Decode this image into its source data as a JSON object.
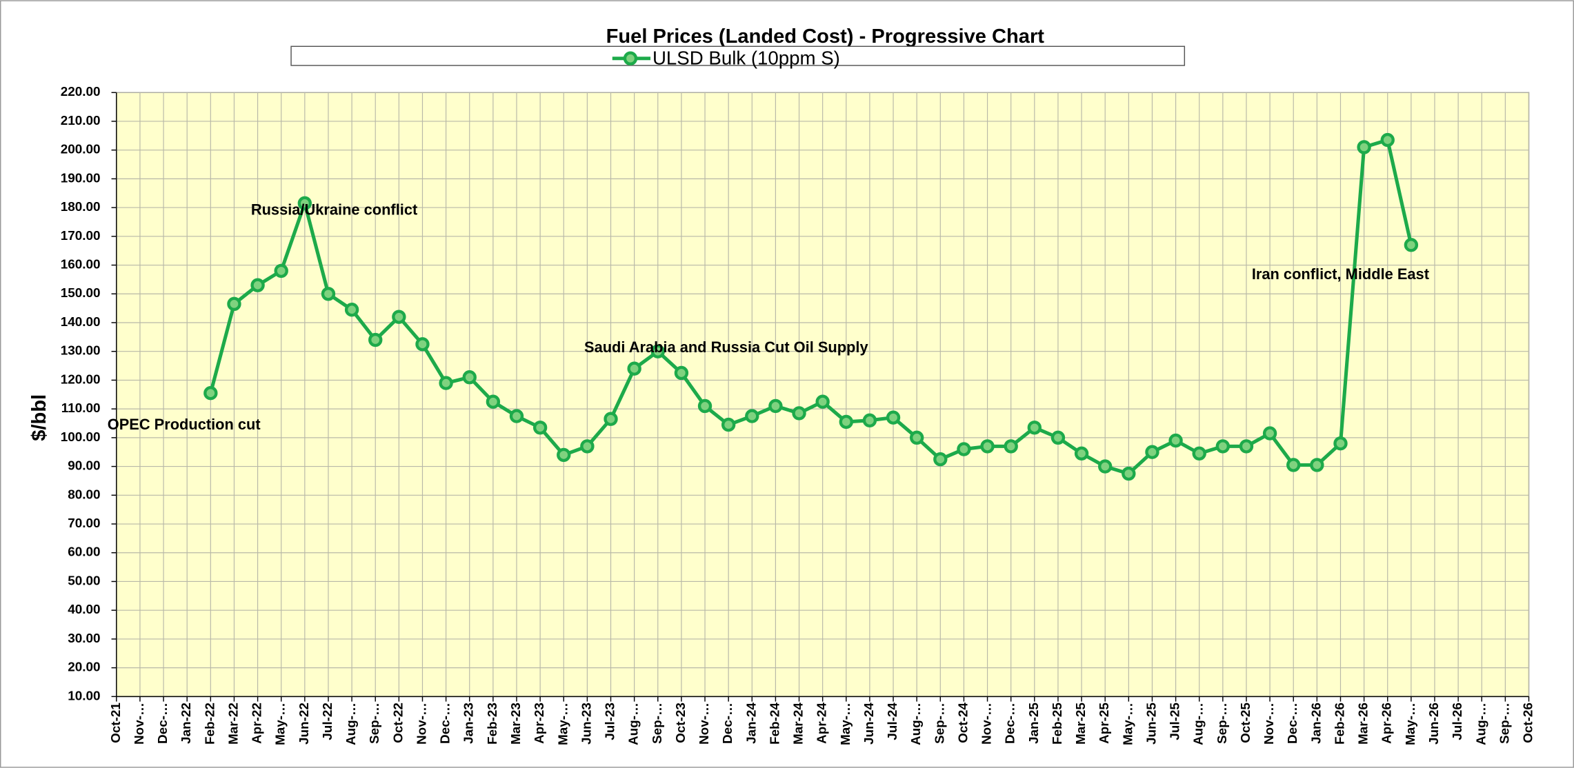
{
  "chart_data": {
    "type": "line",
    "title": "Fuel Prices (Landed Cost) - Progressive Chart",
    "ylabel": "$/bbl",
    "categories": [
      "Oct-21",
      "Nov-…",
      "Dec-…",
      "Jan-22",
      "Feb-22",
      "Mar-22",
      "Apr-22",
      "May-…",
      "Jun-22",
      "Jul-22",
      "Aug-…",
      "Sep-…",
      "Oct-22",
      "Nov-…",
      "Dec-…",
      "Jan-23",
      "Feb-23",
      "Mar-23",
      "Apr-23",
      "May-…",
      "Jun-23",
      "Jul-23",
      "Aug-…",
      "Sep-…",
      "Oct-23",
      "Nov-…",
      "Dec-…",
      "Jan-24",
      "Feb-24",
      "Mar-24",
      "Apr-24",
      "May-…",
      "Jun-24",
      "Jul-24",
      "Aug-…",
      "Sep-…",
      "Oct-24",
      "Nov-…",
      "Dec-…",
      "Jan-25",
      "Feb-25",
      "Mar-25",
      "Apr-25",
      "May-…",
      "Jun-25",
      "Jul-25",
      "Aug-…",
      "Sep-…",
      "Oct-25",
      "Nov-…",
      "Dec-…",
      "Jan-26",
      "Feb-26",
      "Mar-26",
      "Apr-26",
      "May-…",
      "Jun-26",
      "Jul-26",
      "Aug-…",
      "Sep-…",
      "Oct-26"
    ],
    "series": [
      {
        "name": "ULSD Bulk (10ppm S)",
        "color": "#1daa4a",
        "values": [
          null,
          null,
          null,
          null,
          115.5,
          146.5,
          153,
          158,
          181.5,
          150,
          144.5,
          134,
          142,
          132.5,
          119,
          121,
          112.5,
          107.5,
          103.5,
          94,
          97,
          106.5,
          124,
          130,
          122.5,
          111,
          104.5,
          107.5,
          111,
          108.5,
          112.5,
          105.5,
          106,
          107,
          100,
          92.5,
          96,
          97,
          97,
          103.5,
          100,
          94.5,
          90,
          87.5,
          95,
          99,
          94.5,
          97,
          97,
          101.5,
          90.5,
          90.5,
          98,
          201,
          203.5,
          167,
          null,
          null,
          null,
          null,
          null
        ]
      }
    ],
    "ylim": [
      10,
      220
    ],
    "yticks": [
      {
        "value": 10,
        "label": "10.00"
      },
      {
        "value": 20,
        "label": "20.00"
      },
      {
        "value": 30,
        "label": "30.00"
      },
      {
        "value": 40,
        "label": "40.00"
      },
      {
        "value": 50,
        "label": "50.00"
      },
      {
        "value": 60,
        "label": "60.00"
      },
      {
        "value": 70,
        "label": "70.00"
      },
      {
        "value": 80,
        "label": "80.00"
      },
      {
        "value": 90,
        "label": "90.00"
      },
      {
        "value": 100,
        "label": "100.00"
      },
      {
        "value": 110,
        "label": "110.00"
      },
      {
        "value": 120,
        "label": "120.00"
      },
      {
        "value": 130,
        "label": "130.00"
      },
      {
        "value": 140,
        "label": "140.00"
      },
      {
        "value": 150,
        "label": "150.00"
      },
      {
        "value": 160,
        "label": "160.00"
      },
      {
        "value": 170,
        "label": "170.00"
      },
      {
        "value": 180,
        "label": "180.00"
      },
      {
        "value": 190,
        "label": "190.00"
      },
      {
        "value": 200,
        "label": "200.00"
      },
      {
        "value": 210,
        "label": "210.00"
      },
      {
        "value": 220,
        "label": "220.00"
      }
    ],
    "grid": true,
    "legend": "top",
    "background": "#ffffcc",
    "annotations": [
      "OPEC Production cut",
      "Russia/Ukraine conflict",
      "Saudi Arabia and Russia Cut Oil Supply",
      "Iran conflict, Middle East"
    ]
  }
}
